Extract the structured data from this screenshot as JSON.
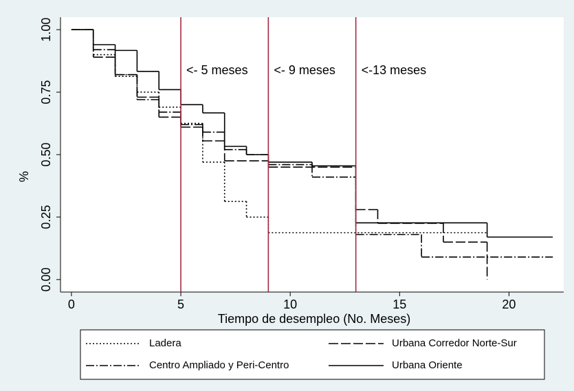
{
  "chart_data": {
    "type": "step",
    "xlabel": "Tiempo de desempleo (No. Meses)",
    "ylabel": "%",
    "xlim": [
      -0.5,
      22.5
    ],
    "ylim": [
      -0.05,
      1.05
    ],
    "xticks": [
      0,
      5,
      10,
      15,
      20
    ],
    "yticks": [
      {
        "value": 0,
        "label": "0.00"
      },
      {
        "value": 0.25,
        "label": "0.25"
      },
      {
        "value": 0.5,
        "label": "0.50"
      },
      {
        "value": 0.75,
        "label": "0.75"
      },
      {
        "value": 1,
        "label": "1.00"
      }
    ],
    "reference_lines": [
      {
        "x": 5,
        "label": "<- 5 meses"
      },
      {
        "x": 9,
        "label": "<- 9 meses"
      },
      {
        "x": 13,
        "label": "<-13 meses"
      }
    ],
    "reference_color": "#a3283f",
    "series": [
      {
        "name": "Ladera",
        "color": "#000000",
        "dash": "2,3",
        "x": [
          0,
          1,
          2,
          3,
          4,
          5,
          6,
          7,
          8,
          9,
          19
        ],
        "values": [
          1,
          0.9,
          0.813,
          0.75,
          0.69,
          0.625,
          0.47,
          0.3125,
          0.25,
          0.1875,
          0.1875
        ]
      },
      {
        "name": "Urbana Corredor Norte-Sur",
        "color": "#000000",
        "dash": "14,4",
        "x": [
          0,
          1,
          2,
          3,
          4,
          5,
          6,
          7,
          9,
          13,
          14,
          17,
          19
        ],
        "values": [
          1,
          0.89,
          0.82,
          0.73,
          0.65,
          0.61,
          0.555,
          0.475,
          0.45,
          0.28,
          0.225,
          0.15,
          0
        ]
      },
      {
        "name": "Centro Ampliado y Peri-Centro",
        "color": "#000000",
        "dash": "12,3,2,3",
        "x": [
          0,
          1,
          2,
          3,
          4,
          5,
          6,
          7,
          8,
          9,
          11,
          13,
          16,
          22
        ],
        "values": [
          1,
          0.92,
          0.82,
          0.72,
          0.67,
          0.62,
          0.59,
          0.52,
          0.5,
          0.46,
          0.41,
          0.18,
          0.09,
          0.09
        ]
      },
      {
        "name": "Urbana Oriente",
        "color": "#000000",
        "dash": "none",
        "x": [
          0,
          1,
          2,
          3,
          4,
          5,
          6,
          7,
          8,
          9,
          11,
          13,
          19,
          22
        ],
        "values": [
          1,
          0.94,
          0.917,
          0.833,
          0.76,
          0.7,
          0.667,
          0.533,
          0.5,
          0.47,
          0.455,
          0.227,
          0.17,
          0.17
        ]
      }
    ]
  }
}
